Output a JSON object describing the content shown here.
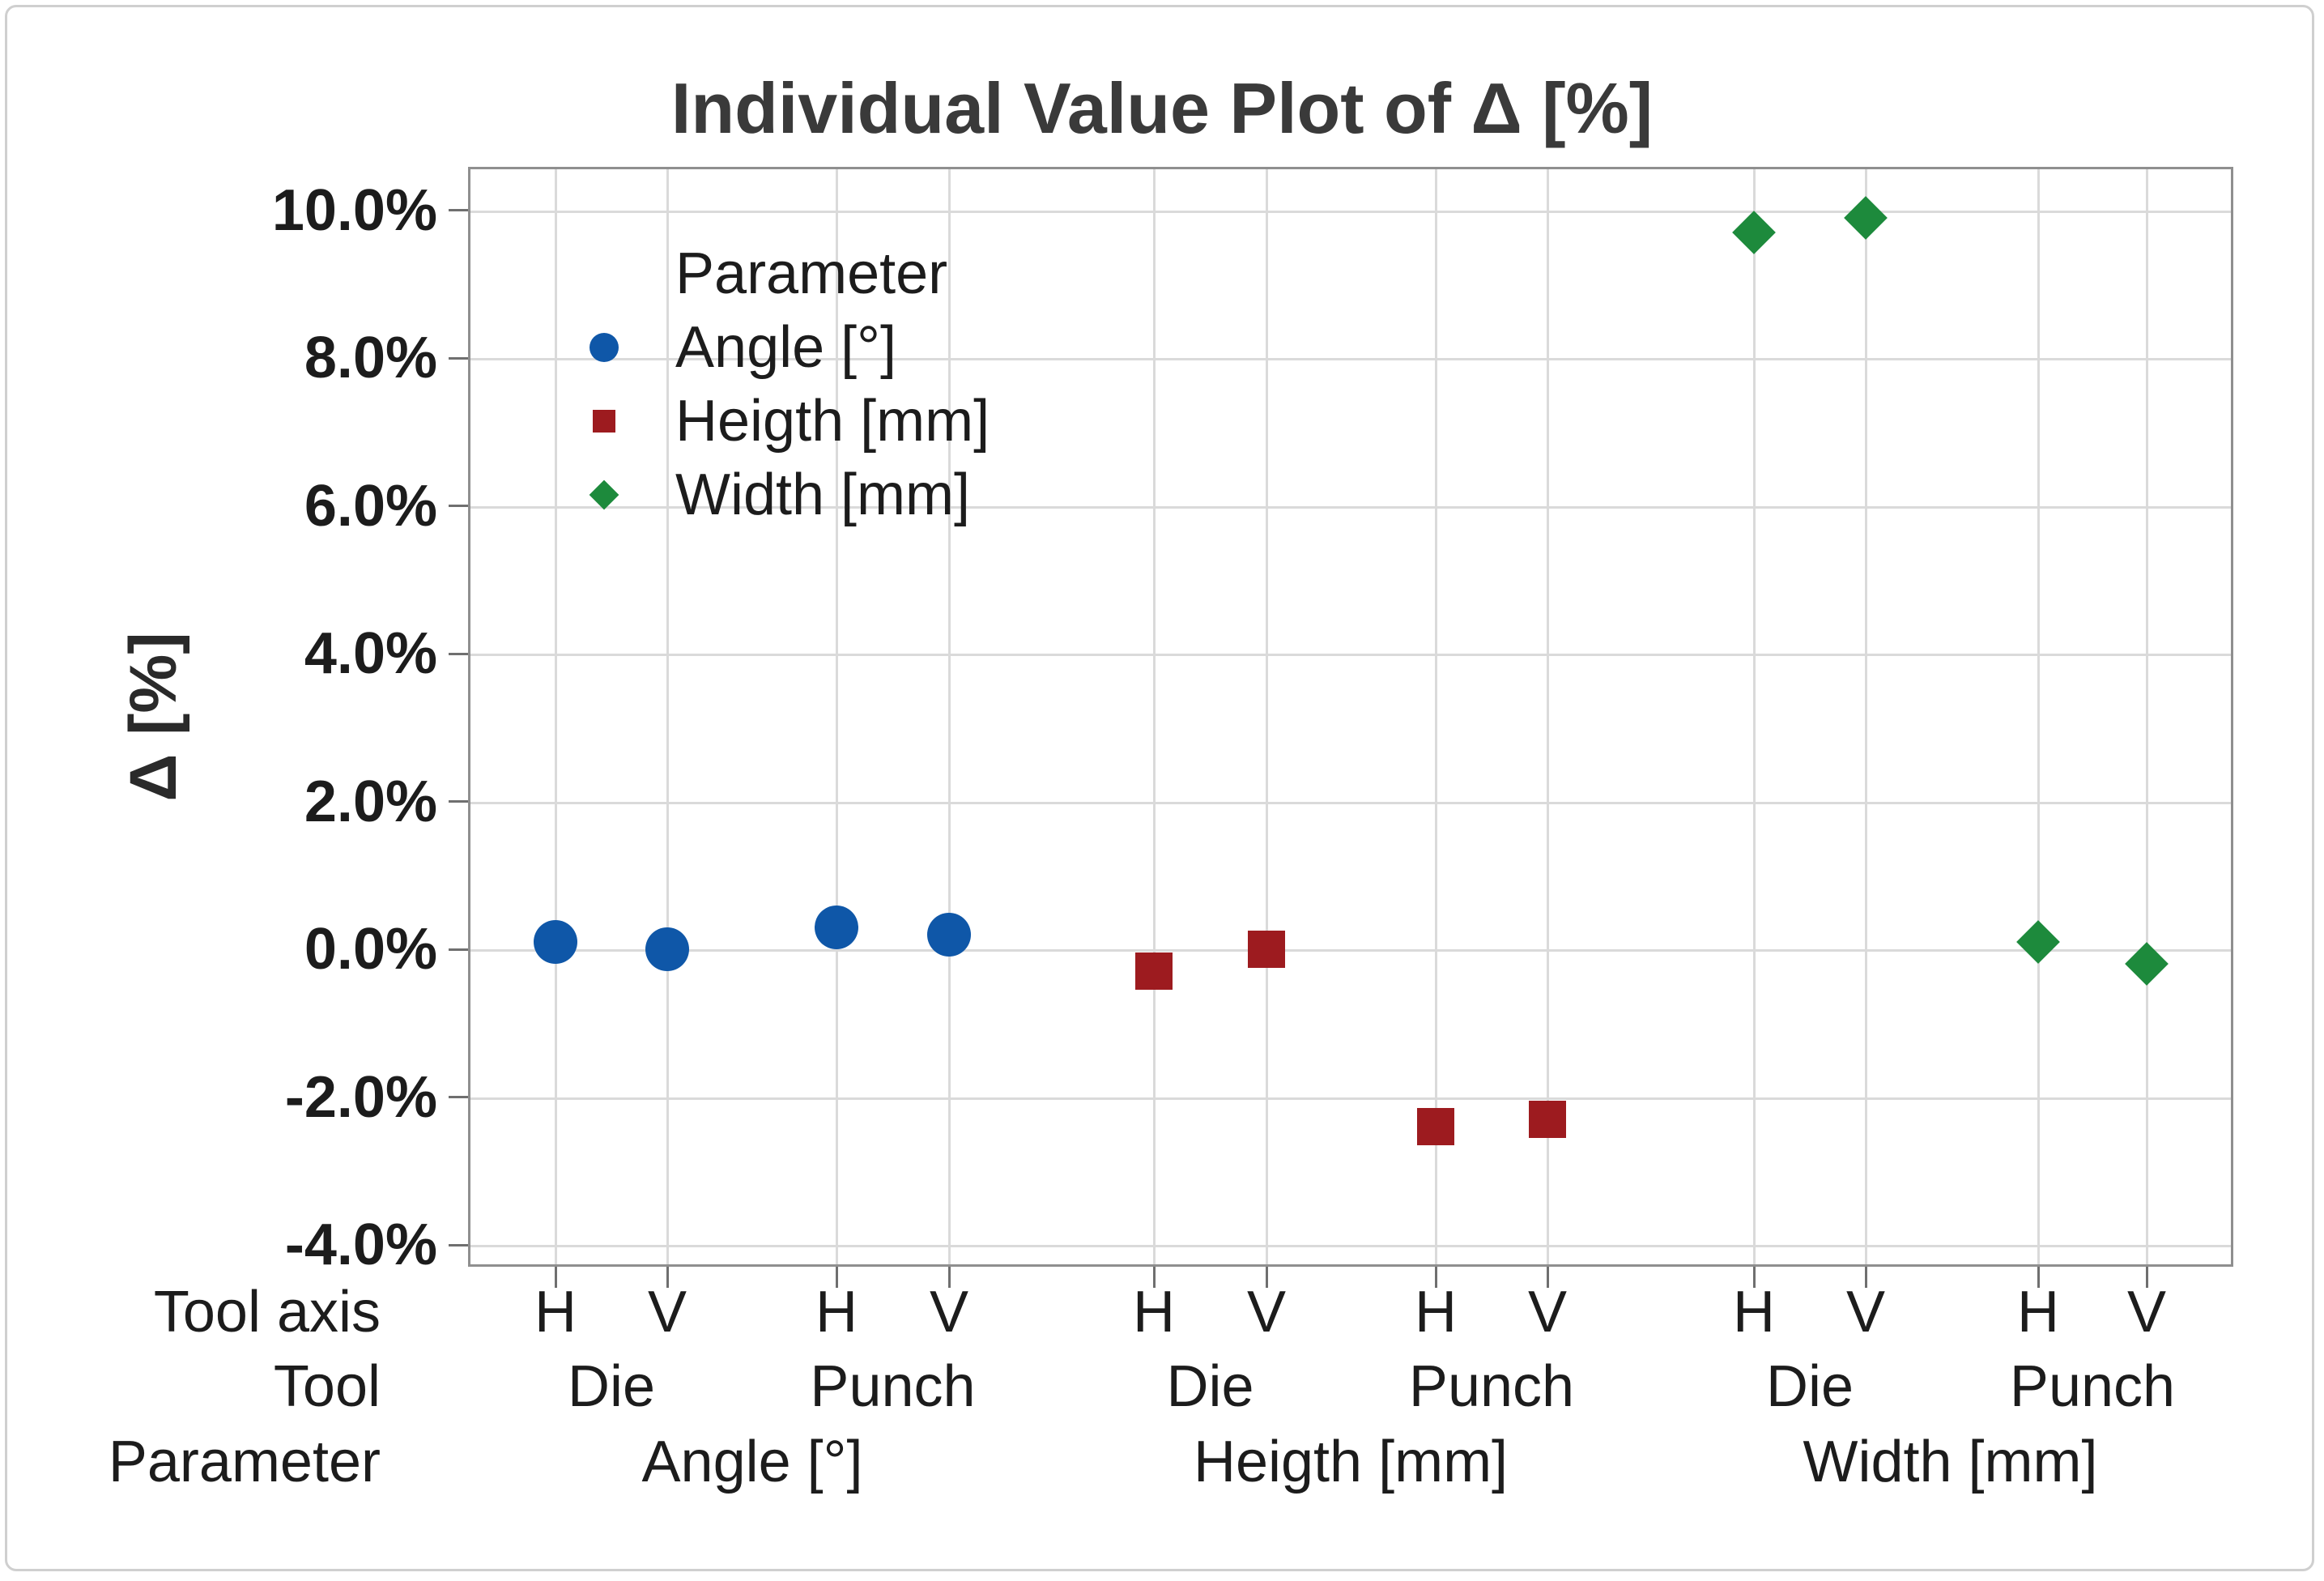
{
  "title": "Individual Value Plot of Δ [%]",
  "y_axis": {
    "label": "Δ [%]",
    "tick_labels": [
      "10.0%",
      "8.0%",
      "6.0%",
      "4.0%",
      "2.0%",
      "0.0%",
      "-2.0%",
      "-4.0%"
    ]
  },
  "x_axis": {
    "row_labels": [
      "Tool axis",
      "Tool",
      "Parameter"
    ],
    "tool_axis_labels": [
      "H",
      "V",
      "H",
      "V",
      "H",
      "V",
      "H",
      "V",
      "H",
      "V",
      "H",
      "V"
    ],
    "tool_labels": [
      "Die",
      "Punch",
      "Die",
      "Punch",
      "Die",
      "Punch"
    ],
    "parameter_labels": [
      "Angle [°]",
      "Heigth [mm]",
      "Width [mm]"
    ]
  },
  "legend": {
    "title": "Parameter",
    "items": [
      {
        "label": "Angle [°]",
        "marker": "circle",
        "color": "#0f57a8"
      },
      {
        "label": "Heigth [mm]",
        "marker": "square",
        "color": "#9d1b1f"
      },
      {
        "label": "Width [mm]",
        "marker": "diamond",
        "color": "#1d8a3c"
      }
    ]
  },
  "chart_data": {
    "type": "scatter",
    "title": "Individual Value Plot of Δ [%]",
    "ylabel": "Δ [%]",
    "ylim_percent": [
      -4.35,
      10.6
    ],
    "y_ticks_percent": [
      10,
      8,
      6,
      4,
      2,
      0,
      -2,
      -4
    ],
    "grid": true,
    "legend_position": "inside-top-left",
    "x_slots": [
      {
        "parameter": "Angle [°]",
        "tool": "Die",
        "tool_axis": "H"
      },
      {
        "parameter": "Angle [°]",
        "tool": "Die",
        "tool_axis": "V"
      },
      {
        "parameter": "Angle [°]",
        "tool": "Punch",
        "tool_axis": "H"
      },
      {
        "parameter": "Angle [°]",
        "tool": "Punch",
        "tool_axis": "V"
      },
      {
        "parameter": "Heigth [mm]",
        "tool": "Die",
        "tool_axis": "H"
      },
      {
        "parameter": "Heigth [mm]",
        "tool": "Die",
        "tool_axis": "V"
      },
      {
        "parameter": "Heigth [mm]",
        "tool": "Punch",
        "tool_axis": "H"
      },
      {
        "parameter": "Heigth [mm]",
        "tool": "Punch",
        "tool_axis": "V"
      },
      {
        "parameter": "Width [mm]",
        "tool": "Die",
        "tool_axis": "H"
      },
      {
        "parameter": "Width [mm]",
        "tool": "Die",
        "tool_axis": "V"
      },
      {
        "parameter": "Width [mm]",
        "tool": "Punch",
        "tool_axis": "H"
      },
      {
        "parameter": "Width [mm]",
        "tool": "Punch",
        "tool_axis": "V"
      }
    ],
    "series": [
      {
        "name": "Angle [°]",
        "marker": "circle",
        "color": "#0f57a8",
        "points": [
          {
            "tool": "Die",
            "tool_axis": "H",
            "delta_percent": 0.1
          },
          {
            "tool": "Die",
            "tool_axis": "V",
            "delta_percent": 0.0
          },
          {
            "tool": "Punch",
            "tool_axis": "H",
            "delta_percent": 0.3
          },
          {
            "tool": "Punch",
            "tool_axis": "V",
            "delta_percent": 0.2
          }
        ]
      },
      {
        "name": "Heigth [mm]",
        "marker": "square",
        "color": "#9d1b1f",
        "points": [
          {
            "tool": "Die",
            "tool_axis": "H",
            "delta_percent": -0.3
          },
          {
            "tool": "Die",
            "tool_axis": "V",
            "delta_percent": 0.0
          },
          {
            "tool": "Punch",
            "tool_axis": "H",
            "delta_percent": -2.4
          },
          {
            "tool": "Punch",
            "tool_axis": "V",
            "delta_percent": -2.3
          }
        ]
      },
      {
        "name": "Width [mm]",
        "marker": "diamond",
        "color": "#1d8a3c",
        "points": [
          {
            "tool": "Die",
            "tool_axis": "H",
            "delta_percent": 9.7
          },
          {
            "tool": "Die",
            "tool_axis": "V",
            "delta_percent": 9.9
          },
          {
            "tool": "Punch",
            "tool_axis": "H",
            "delta_percent": 0.1
          },
          {
            "tool": "Punch",
            "tool_axis": "V",
            "delta_percent": -0.2
          }
        ]
      }
    ]
  }
}
